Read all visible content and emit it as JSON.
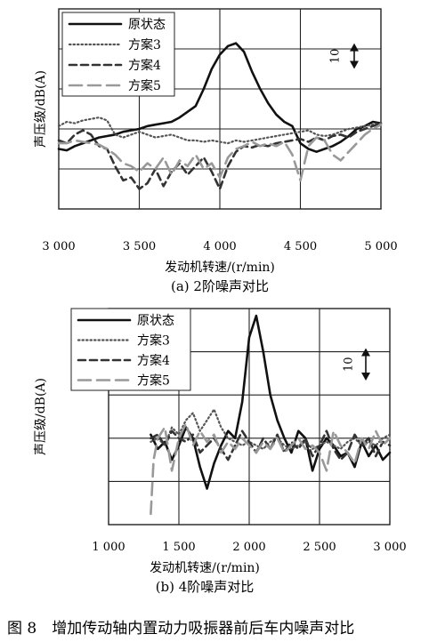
{
  "figure_caption": "图 8　增加传动轴内置动力吸振器前后车内噪声对比",
  "chart_data": [
    {
      "type": "line",
      "caption": "(a) 2阶噪声对比",
      "xlabel": "发动机转速/(r/min)",
      "ylabel": "声压级/dB(A)",
      "x_ticks": [
        "3 000",
        "3 500",
        "4 000",
        "4 500",
        "5 000"
      ],
      "xlim": [
        3000,
        5000
      ],
      "ylim": [
        0,
        7
      ],
      "grid": true,
      "legend_position": "top-left",
      "scale_bar": {
        "label": "10",
        "y_start": 4.9,
        "y_end": 5.8
      },
      "series": [
        {
          "name": "原状态",
          "color": "#111111",
          "dash": "solid",
          "width": 2.6,
          "x": [
            3000,
            3050,
            3100,
            3150,
            3200,
            3250,
            3300,
            3350,
            3400,
            3450,
            3500,
            3550,
            3600,
            3650,
            3700,
            3750,
            3800,
            3850,
            3900,
            3950,
            4000,
            4050,
            4100,
            4150,
            4200,
            4250,
            4300,
            4350,
            4400,
            4450,
            4500,
            4550,
            4600,
            4650,
            4700,
            4750,
            4800,
            4850,
            4900,
            4950,
            5000
          ],
          "y": [
            2.1,
            2.05,
            2.2,
            2.3,
            2.4,
            2.5,
            2.55,
            2.6,
            2.7,
            2.75,
            2.8,
            2.9,
            2.95,
            3.0,
            3.05,
            3.2,
            3.4,
            3.6,
            4.2,
            4.9,
            5.4,
            5.7,
            5.8,
            5.5,
            4.8,
            4.2,
            3.7,
            3.3,
            3.05,
            2.9,
            2.3,
            2.1,
            2.0,
            2.1,
            2.2,
            2.35,
            2.55,
            2.8,
            2.9,
            3.05,
            3.0
          ]
        },
        {
          "name": "方案3",
          "color": "#555555",
          "dash": "dot",
          "width": 2.2,
          "x": [
            3000,
            3050,
            3100,
            3150,
            3200,
            3250,
            3300,
            3350,
            3400,
            3450,
            3500,
            3550,
            3600,
            3650,
            3700,
            3750,
            3800,
            3850,
            3900,
            3950,
            4000,
            4050,
            4100,
            4150,
            4200,
            4250,
            4300,
            4350,
            4400,
            4450,
            4500,
            4550,
            4600,
            4650,
            4700,
            4750,
            4800,
            4850,
            4900,
            4950,
            5000
          ],
          "y": [
            2.9,
            3.05,
            3.0,
            3.1,
            3.15,
            3.2,
            3.1,
            2.6,
            2.5,
            2.6,
            2.7,
            2.6,
            2.5,
            2.55,
            2.6,
            2.5,
            2.4,
            2.4,
            2.35,
            2.4,
            2.35,
            2.3,
            2.4,
            2.35,
            2.4,
            2.45,
            2.5,
            2.55,
            2.6,
            2.65,
            2.7,
            2.75,
            2.6,
            2.55,
            2.6,
            2.7,
            2.8,
            2.85,
            2.9,
            2.95,
            3.0
          ]
        },
        {
          "name": "方案4",
          "color": "#333333",
          "dash": "dash",
          "width": 2.6,
          "x": [
            3000,
            3050,
            3100,
            3150,
            3200,
            3250,
            3300,
            3350,
            3400,
            3450,
            3500,
            3550,
            3600,
            3650,
            3700,
            3750,
            3800,
            3850,
            3900,
            3950,
            4000,
            4050,
            4100,
            4150,
            4200,
            4250,
            4300,
            4350,
            4400,
            4450,
            4500,
            4550,
            4600,
            4650,
            4700,
            4750,
            4800,
            4850,
            4900,
            4950,
            5000
          ],
          "y": [
            2.4,
            2.3,
            2.6,
            2.75,
            2.6,
            2.2,
            2.1,
            1.5,
            1.0,
            1.1,
            0.7,
            0.9,
            1.4,
            0.8,
            1.3,
            1.6,
            1.2,
            1.5,
            1.8,
            1.3,
            0.7,
            1.5,
            2.0,
            2.2,
            2.15,
            2.25,
            2.2,
            2.3,
            2.35,
            2.4,
            2.45,
            2.35,
            2.5,
            2.4,
            2.55,
            2.6,
            2.5,
            2.7,
            2.8,
            2.9,
            3.0
          ]
        },
        {
          "name": "方案5",
          "color": "#999999",
          "dash": "longdash",
          "width": 2.6,
          "x": [
            3000,
            3050,
            3100,
            3150,
            3200,
            3250,
            3300,
            3350,
            3400,
            3450,
            3500,
            3550,
            3600,
            3650,
            3700,
            3750,
            3800,
            3850,
            3900,
            3950,
            4000,
            4050,
            4100,
            4150,
            4200,
            4250,
            4300,
            4350,
            4400,
            4450,
            4500,
            4550,
            4600,
            4650,
            4700,
            4750,
            4800,
            4850,
            4900,
            4950,
            5000
          ],
          "y": [
            2.3,
            2.3,
            2.4,
            2.35,
            2.3,
            2.25,
            2.1,
            1.9,
            1.6,
            1.5,
            1.3,
            1.6,
            1.4,
            1.8,
            1.2,
            1.7,
            1.5,
            1.9,
            1.4,
            1.6,
            1.1,
            1.8,
            2.1,
            2.2,
            2.35,
            2.2,
            2.3,
            2.2,
            2.35,
            1.9,
            1.0,
            2.2,
            2.5,
            2.4,
            1.9,
            1.7,
            2.0,
            2.3,
            2.6,
            2.8,
            2.95
          ]
        }
      ]
    },
    {
      "type": "line",
      "caption": "(b) 4阶噪声对比",
      "xlabel": "发动机转速/(r/min)",
      "ylabel": "声压级/dB(A)",
      "x_ticks": [
        "1 000",
        "1 500",
        "2 000",
        "2 500",
        "3 000"
      ],
      "xlim": [
        1000,
        3000
      ],
      "ylim": [
        0,
        6
      ],
      "grid": true,
      "legend_position": "top-left",
      "scale_bar": {
        "label": "10",
        "y_start": 4.0,
        "y_end": 4.9
      },
      "series": [
        {
          "name": "原状态",
          "color": "#111111",
          "dash": "solid",
          "width": 2.6,
          "x": [
            1300,
            1350,
            1400,
            1450,
            1500,
            1550,
            1600,
            1650,
            1700,
            1750,
            1800,
            1850,
            1900,
            1950,
            2000,
            2050,
            2100,
            2150,
            2200,
            2250,
            2300,
            2350,
            2400,
            2450,
            2500,
            2550,
            2600,
            2650,
            2700,
            2750,
            2800,
            2850,
            2900,
            2950,
            3000
          ],
          "y": [
            2.5,
            2.1,
            2.3,
            1.8,
            2.2,
            2.7,
            2.4,
            1.6,
            1.0,
            1.7,
            2.2,
            2.6,
            2.4,
            3.4,
            5.2,
            5.8,
            4.8,
            3.6,
            2.9,
            2.4,
            2.0,
            2.6,
            2.4,
            1.5,
            2.1,
            2.4,
            2.2,
            1.9,
            2.0,
            1.6,
            2.3,
            1.9,
            2.2,
            1.8,
            2.0
          ]
        },
        {
          "name": "方案3",
          "color": "#555555",
          "dash": "dot",
          "width": 2.2,
          "x": [
            1300,
            1350,
            1400,
            1450,
            1500,
            1550,
            1600,
            1650,
            1700,
            1750,
            1800,
            1850,
            1900,
            1950,
            2000,
            2050,
            2100,
            2150,
            2200,
            2250,
            2300,
            2350,
            2400,
            2450,
            2500,
            2550,
            2600,
            2650,
            2700,
            2750,
            2800,
            2850,
            2900,
            2950,
            3000
          ],
          "y": [
            2.3,
            2.4,
            2.2,
            2.7,
            2.5,
            2.9,
            3.1,
            2.6,
            2.9,
            3.2,
            2.7,
            2.4,
            2.3,
            2.2,
            2.3,
            2.2,
            2.1,
            2.3,
            2.4,
            2.2,
            2.1,
            2.2,
            2.3,
            2.1,
            2.2,
            2.3,
            2.2,
            2.1,
            2.3,
            2.4,
            2.2,
            2.3,
            2.2,
            2.4,
            2.5
          ]
        },
        {
          "name": "方案4",
          "color": "#333333",
          "dash": "dash",
          "width": 2.6,
          "x": [
            1300,
            1350,
            1400,
            1450,
            1500,
            1550,
            1600,
            1650,
            1700,
            1750,
            1800,
            1850,
            1900,
            1950,
            2000,
            2050,
            2100,
            2150,
            2200,
            2250,
            2300,
            2350,
            2400,
            2450,
            2500,
            2550,
            2600,
            2650,
            2700,
            2750,
            2800,
            2850,
            2900,
            2950,
            3000
          ],
          "y": [
            2.4,
            2.5,
            2.2,
            2.6,
            2.4,
            2.3,
            2.5,
            2.0,
            2.2,
            2.4,
            2.1,
            1.8,
            2.2,
            2.6,
            2.3,
            2.0,
            2.4,
            2.1,
            2.5,
            2.0,
            2.3,
            2.1,
            2.4,
            1.9,
            2.2,
            2.6,
            2.1,
            1.8,
            2.0,
            2.5,
            2.2,
            2.4,
            1.9,
            2.3,
            2.2
          ]
        },
        {
          "name": "方案5",
          "color": "#999999",
          "dash": "longdash",
          "width": 2.6,
          "x": [
            1300,
            1320,
            1350,
            1400,
            1450,
            1500,
            1550,
            1600,
            1650,
            1700,
            1750,
            1800,
            1850,
            1900,
            1950,
            2000,
            2050,
            2100,
            2150,
            2200,
            2250,
            2300,
            2350,
            2400,
            2450,
            2500,
            2550,
            2600,
            2650,
            2700,
            2750,
            2800,
            2850,
            2900,
            2950,
            3000
          ],
          "y": [
            0.3,
            1.8,
            2.4,
            2.7,
            1.5,
            2.4,
            2.8,
            2.2,
            2.6,
            2.3,
            2.5,
            2.0,
            2.3,
            2.1,
            2.4,
            2.2,
            2.0,
            2.3,
            2.1,
            2.4,
            2.0,
            2.2,
            2.4,
            2.1,
            2.2,
            2.0,
            1.5,
            2.6,
            2.2,
            2.0,
            1.7,
            2.4,
            2.1,
            2.6,
            2.2,
            2.4
          ]
        }
      ]
    }
  ]
}
